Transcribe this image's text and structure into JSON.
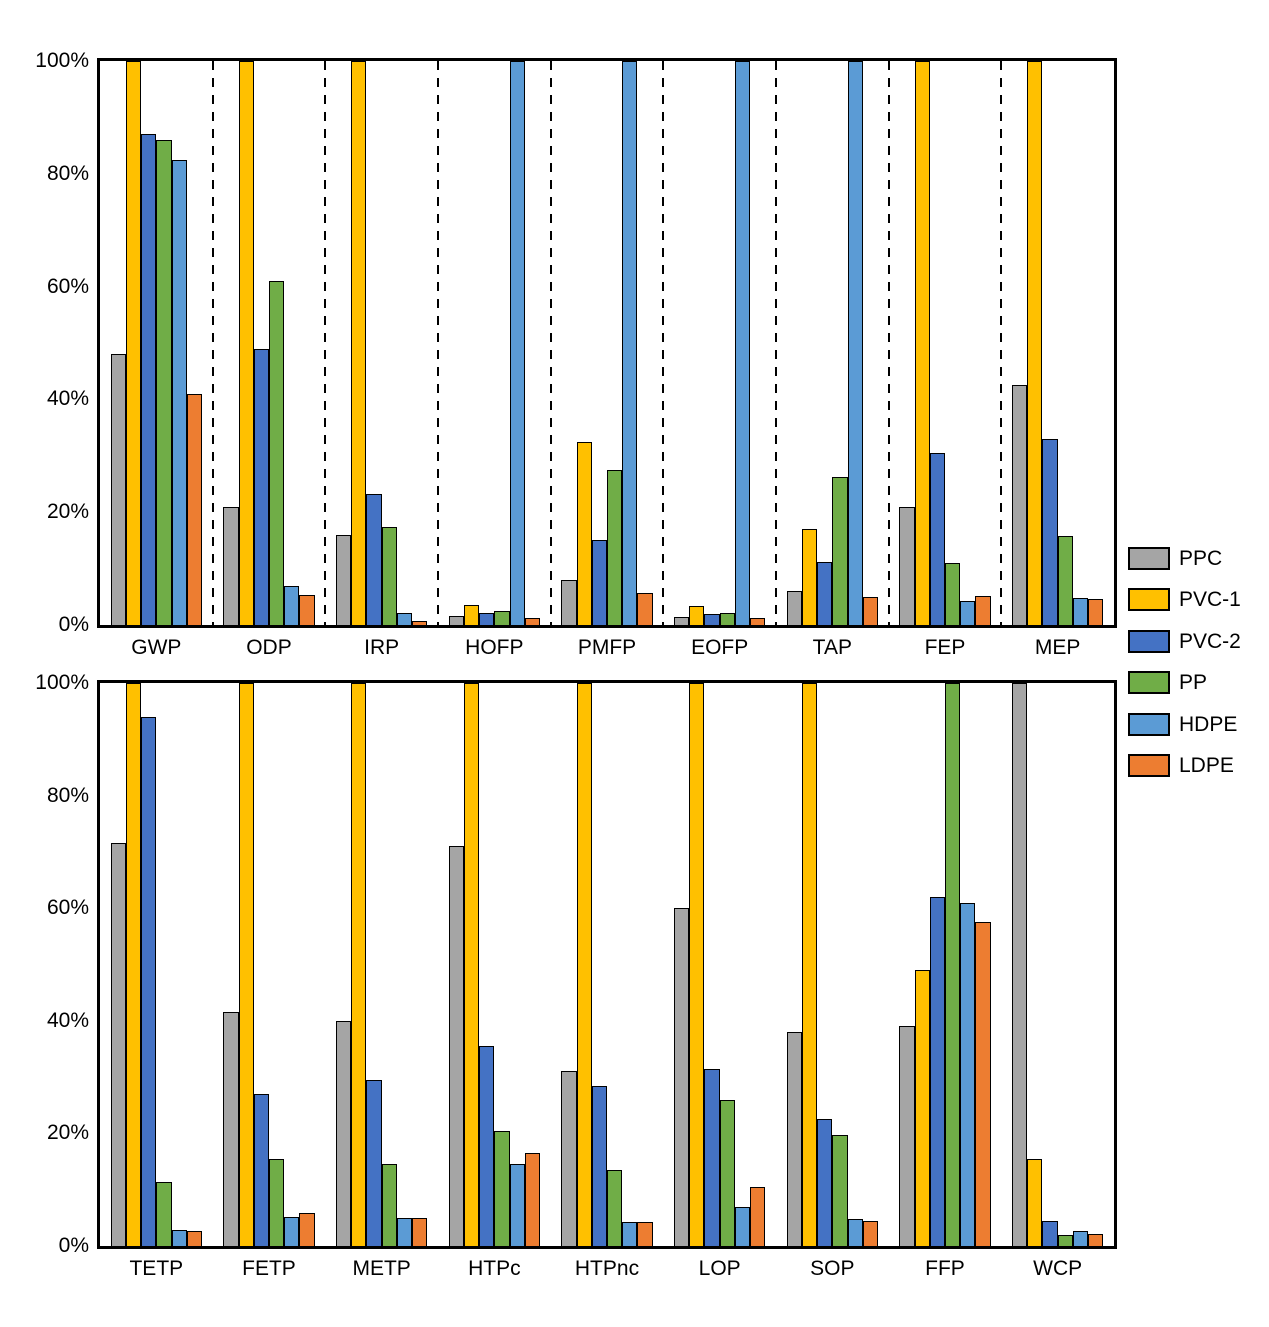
{
  "legend": {
    "items": [
      {
        "label": "PPC",
        "color": "#A5A5A5"
      },
      {
        "label": "PVC-1",
        "color": "#FFC000"
      },
      {
        "label": "PVC-2",
        "color": "#4472C4"
      },
      {
        "label": "PP",
        "color": "#70AD47"
      },
      {
        "label": "HDPE",
        "color": "#5B9BD5"
      },
      {
        "label": "LDPE",
        "color": "#ED7D31"
      }
    ]
  },
  "chart_data": [
    {
      "type": "bar",
      "panel": "top",
      "title": "",
      "xlabel": "",
      "ylabel": "",
      "ylim": [
        0,
        100
      ],
      "yticks": [
        {
          "value": 0,
          "label": "0%"
        },
        {
          "value": 20,
          "label": "20%"
        },
        {
          "value": 40,
          "label": "40%"
        },
        {
          "value": 60,
          "label": "60%"
        },
        {
          "value": 80,
          "label": "80%"
        },
        {
          "value": 100,
          "label": "100%"
        }
      ],
      "grid": false,
      "group_separators": "dashed",
      "categories": [
        "GWP",
        "ODP",
        "IRP",
        "HOFP",
        "PMFP",
        "EOFP",
        "TAP",
        "FEP",
        "MEP"
      ],
      "series": [
        {
          "name": "PPC",
          "color": "#A5A5A5",
          "values": [
            48,
            21,
            16,
            1.6,
            8,
            1.5,
            6,
            21,
            42.5
          ]
        },
        {
          "name": "PVC-1",
          "color": "#FFC000",
          "values": [
            100,
            100,
            100,
            3.5,
            32.5,
            3.3,
            17,
            100,
            100
          ]
        },
        {
          "name": "PVC-2",
          "color": "#4472C4",
          "values": [
            87,
            49,
            23.3,
            2.1,
            15,
            2,
            11.1,
            30.5,
            33
          ]
        },
        {
          "name": "PP",
          "color": "#70AD47",
          "values": [
            86,
            61,
            17.4,
            2.4,
            27.4,
            2.2,
            26.3,
            11,
            15.7
          ]
        },
        {
          "name": "HDPE",
          "color": "#5B9BD5",
          "values": [
            82.5,
            7,
            2.2,
            100,
            100,
            100,
            100,
            4.2,
            4.8
          ]
        },
        {
          "name": "LDPE",
          "color": "#ED7D31",
          "values": [
            41,
            5.3,
            0.8,
            1.2,
            5.7,
            1.2,
            4.9,
            5.1,
            4.7
          ]
        }
      ]
    },
    {
      "type": "bar",
      "panel": "bottom",
      "title": "",
      "xlabel": "",
      "ylabel": "",
      "ylim": [
        0,
        100
      ],
      "yticks": [
        {
          "value": 0,
          "label": "0%"
        },
        {
          "value": 20,
          "label": "20%"
        },
        {
          "value": 40,
          "label": "40%"
        },
        {
          "value": 60,
          "label": "60%"
        },
        {
          "value": 80,
          "label": "80%"
        },
        {
          "value": 100,
          "label": "100%"
        }
      ],
      "grid": false,
      "group_separators": "none",
      "categories": [
        "TETP",
        "FETP",
        "METP",
        "HTPc",
        "HTPnc",
        "LOP",
        "SOP",
        "FFP",
        "WCP"
      ],
      "series": [
        {
          "name": "PPC",
          "color": "#A5A5A5",
          "values": [
            71.5,
            41.5,
            40,
            71,
            31,
            60,
            38,
            39,
            100
          ]
        },
        {
          "name": "PVC-1",
          "color": "#FFC000",
          "values": [
            100,
            100,
            100,
            100,
            100,
            100,
            100,
            49,
            15.5
          ]
        },
        {
          "name": "PVC-2",
          "color": "#4472C4",
          "values": [
            94,
            27,
            29.5,
            35.5,
            28.5,
            31.5,
            22.5,
            62,
            4.5
          ]
        },
        {
          "name": "PP",
          "color": "#70AD47",
          "values": [
            11.4,
            15.5,
            14.5,
            20.5,
            13.5,
            26,
            19.8,
            100,
            1.9
          ]
        },
        {
          "name": "HDPE",
          "color": "#5B9BD5",
          "values": [
            2.9,
            5.2,
            5,
            14.5,
            4.2,
            7,
            4.8,
            61,
            2.6
          ]
        },
        {
          "name": "LDPE",
          "color": "#ED7D31",
          "values": [
            2.6,
            5.8,
            5,
            16.5,
            4.2,
            10.4,
            4.4,
            57.5,
            2.1
          ]
        }
      ]
    }
  ]
}
